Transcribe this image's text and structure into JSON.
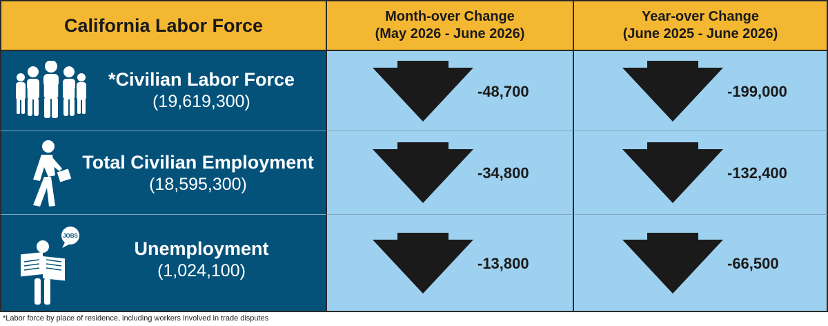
{
  "header": {
    "title": "California Labor Force",
    "month_over": {
      "label": "Month-over Change",
      "range": "(May 2026 - June 2026)"
    },
    "year_over": {
      "label": "Year-over Change",
      "range": "(June 2025 - June 2026)"
    }
  },
  "rows": [
    {
      "metric": "*Civilian Labor Force",
      "level": "(19,619,300)",
      "month_change": "-48,700",
      "year_change": "-199,000",
      "icon": "group-of-people-icon",
      "direction": "down"
    },
    {
      "metric": "Total Civilian Employment",
      "level": "(18,595,300)",
      "month_change": "-34,800",
      "year_change": "-132,400",
      "icon": "walking-worker-icon",
      "direction": "down"
    },
    {
      "metric": "Unemployment",
      "level": "(1,024,100)",
      "month_change": "-13,800",
      "year_change": "-66,500",
      "icon": "newspaper-reader-icon",
      "icon_text": "JOBS",
      "direction": "down"
    }
  ],
  "footnote": "*Labor force by place of residence, including workers involved in trade disputes",
  "colors": {
    "header": "#f4b731",
    "label_cells": "#04527a",
    "value_cells": "#9ed1ef",
    "arrow": "#1a1a1a"
  }
}
